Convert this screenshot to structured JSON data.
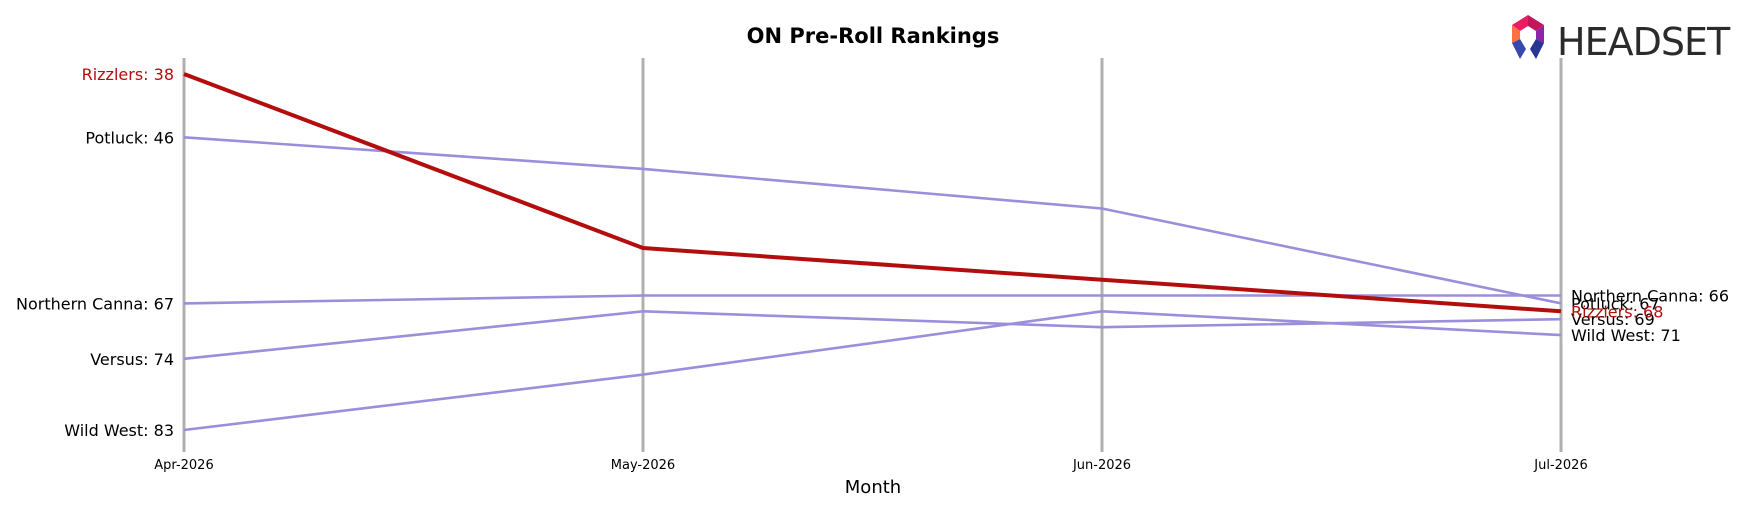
{
  "chart_data": {
    "type": "line",
    "title": "ON Pre-Roll Rankings",
    "xlabel": "Month",
    "ylabel": "",
    "categories": [
      "Apr-2026",
      "May-2026",
      "Jun-2026",
      "Jul-2026"
    ],
    "y_inverted": true,
    "ylim": [
      36,
      85
    ],
    "grid": "vertical lines at each month",
    "series": [
      {
        "name": "Potluck",
        "values": [
          46,
          50,
          55,
          67
        ],
        "color": "#9b8edb",
        "highlight": false,
        "start_label": "Potluck: 46",
        "end_label": "Potluck: 67"
      },
      {
        "name": "Northern Canna",
        "values": [
          67,
          66,
          66,
          66
        ],
        "color": "#9b8edb",
        "highlight": false,
        "start_label": "Northern Canna: 67",
        "end_label": "Northern Canna: 66"
      },
      {
        "name": "Versus",
        "values": [
          74,
          68,
          70,
          69
        ],
        "color": "#9b8edb",
        "highlight": false,
        "start_label": "Versus: 74",
        "end_label": "Versus: 69"
      },
      {
        "name": "Wild West",
        "values": [
          83,
          76,
          68,
          71
        ],
        "color": "#9b8edb",
        "highlight": false,
        "start_label": "Wild West: 83",
        "end_label": "Wild West: 71"
      },
      {
        "name": "Rizzlers",
        "values": [
          38,
          60,
          64,
          68
        ],
        "color": "#b30d0d",
        "highlight": true,
        "start_label": "Rizzlers: 38",
        "end_label": "Rizzlers: 68"
      }
    ]
  },
  "logo": {
    "text": "HEADSET"
  },
  "colors": {
    "grid": "#b0b0b0",
    "highlight": "#b30d0d",
    "others": "#9b8edb"
  }
}
